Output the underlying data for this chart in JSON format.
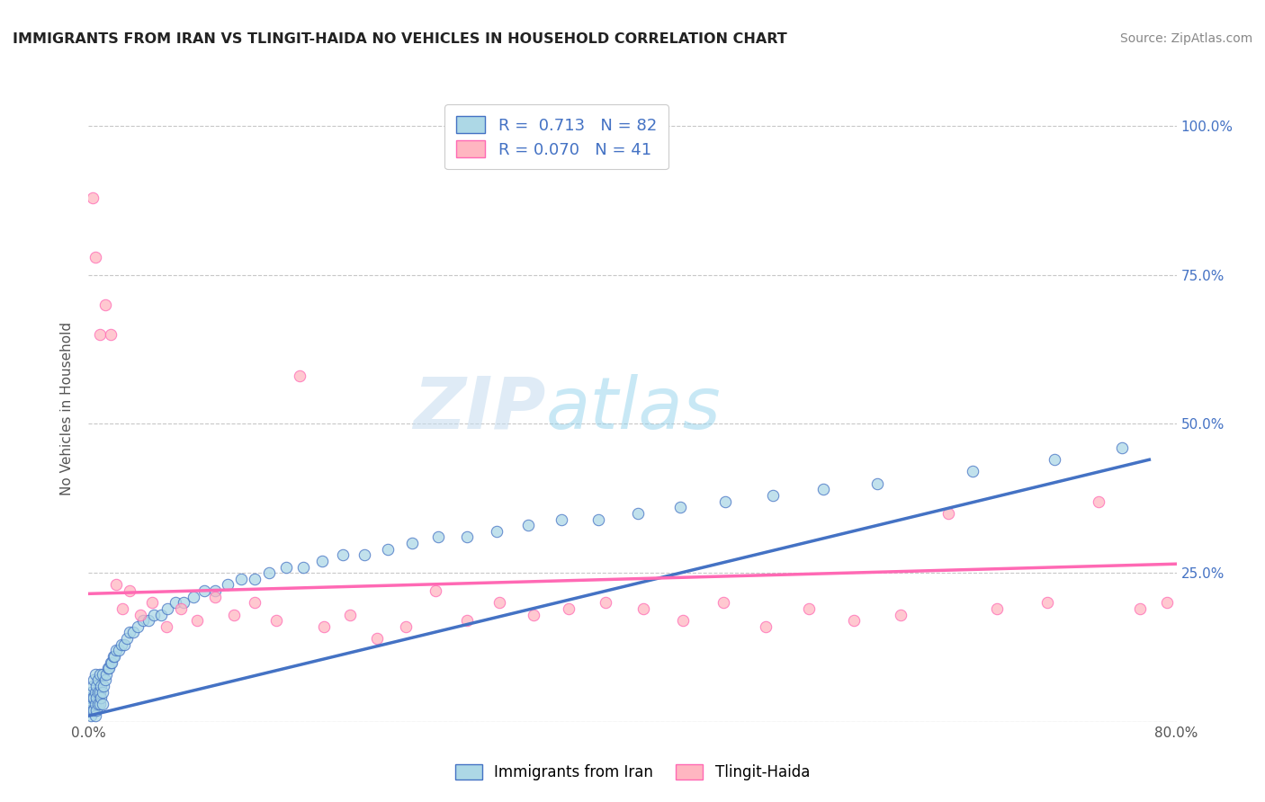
{
  "title": "IMMIGRANTS FROM IRAN VS TLINGIT-HAIDA NO VEHICLES IN HOUSEHOLD CORRELATION CHART",
  "source": "Source: ZipAtlas.com",
  "ylabel": "No Vehicles in Household",
  "x_min": 0.0,
  "x_max": 0.8,
  "y_min": 0.0,
  "y_max": 1.05,
  "x_ticks": [
    0.0,
    0.1,
    0.2,
    0.3,
    0.4,
    0.5,
    0.6,
    0.7,
    0.8
  ],
  "y_ticks": [
    0.0,
    0.25,
    0.5,
    0.75,
    1.0
  ],
  "y_tick_labels_right": [
    "",
    "25.0%",
    "50.0%",
    "75.0%",
    "100.0%"
  ],
  "legend_labels": [
    "Immigrants from Iran",
    "Tlingit-Haida"
  ],
  "scatter_color_iran": "#ADD8E6",
  "scatter_color_tlingit": "#FFB6C1",
  "line_color_iran": "#4472C4",
  "line_color_tlingit": "#FF69B4",
  "watermark_zip": "ZIP",
  "watermark_atlas": "atlas",
  "background_color": "#FFFFFF",
  "grid_color": "#C8C8C8",
  "iran_line_x0": 0.0,
  "iran_line_y0": 0.01,
  "iran_line_x1": 0.78,
  "iran_line_y1": 0.44,
  "tlingit_line_x0": 0.0,
  "tlingit_line_y0": 0.215,
  "tlingit_line_x1": 0.8,
  "tlingit_line_y1": 0.265,
  "iran_scatter_x": [
    0.001,
    0.001,
    0.002,
    0.002,
    0.002,
    0.003,
    0.003,
    0.003,
    0.004,
    0.004,
    0.004,
    0.005,
    0.005,
    0.005,
    0.005,
    0.006,
    0.006,
    0.006,
    0.007,
    0.007,
    0.007,
    0.008,
    0.008,
    0.008,
    0.009,
    0.009,
    0.01,
    0.01,
    0.01,
    0.011,
    0.012,
    0.013,
    0.014,
    0.015,
    0.016,
    0.017,
    0.018,
    0.019,
    0.02,
    0.022,
    0.024,
    0.026,
    0.028,
    0.03,
    0.033,
    0.036,
    0.04,
    0.044,
    0.048,
    0.053,
    0.058,
    0.064,
    0.07,
    0.077,
    0.085,
    0.093,
    0.102,
    0.112,
    0.122,
    0.133,
    0.145,
    0.158,
    0.172,
    0.187,
    0.203,
    0.22,
    0.238,
    0.257,
    0.278,
    0.3,
    0.323,
    0.348,
    0.375,
    0.404,
    0.435,
    0.468,
    0.503,
    0.54,
    0.58,
    0.65,
    0.71,
    0.76
  ],
  "iran_scatter_y": [
    0.02,
    0.04,
    0.01,
    0.03,
    0.05,
    0.02,
    0.04,
    0.06,
    0.02,
    0.04,
    0.07,
    0.01,
    0.03,
    0.05,
    0.08,
    0.02,
    0.04,
    0.06,
    0.03,
    0.05,
    0.07,
    0.03,
    0.05,
    0.08,
    0.04,
    0.06,
    0.03,
    0.05,
    0.08,
    0.06,
    0.07,
    0.08,
    0.09,
    0.09,
    0.1,
    0.1,
    0.11,
    0.11,
    0.12,
    0.12,
    0.13,
    0.13,
    0.14,
    0.15,
    0.15,
    0.16,
    0.17,
    0.17,
    0.18,
    0.18,
    0.19,
    0.2,
    0.2,
    0.21,
    0.22,
    0.22,
    0.23,
    0.24,
    0.24,
    0.25,
    0.26,
    0.26,
    0.27,
    0.28,
    0.28,
    0.29,
    0.3,
    0.31,
    0.31,
    0.32,
    0.33,
    0.34,
    0.34,
    0.35,
    0.36,
    0.37,
    0.38,
    0.39,
    0.4,
    0.42,
    0.44,
    0.46
  ],
  "tlingit_scatter_x": [
    0.003,
    0.005,
    0.008,
    0.012,
    0.016,
    0.02,
    0.025,
    0.03,
    0.038,
    0.047,
    0.057,
    0.068,
    0.08,
    0.093,
    0.107,
    0.122,
    0.138,
    0.155,
    0.173,
    0.192,
    0.212,
    0.233,
    0.255,
    0.278,
    0.302,
    0.327,
    0.353,
    0.38,
    0.408,
    0.437,
    0.467,
    0.498,
    0.53,
    0.563,
    0.597,
    0.632,
    0.668,
    0.705,
    0.743,
    0.773,
    0.793
  ],
  "tlingit_scatter_y": [
    0.88,
    0.78,
    0.65,
    0.7,
    0.65,
    0.23,
    0.19,
    0.22,
    0.18,
    0.2,
    0.16,
    0.19,
    0.17,
    0.21,
    0.18,
    0.2,
    0.17,
    0.58,
    0.16,
    0.18,
    0.14,
    0.16,
    0.22,
    0.17,
    0.2,
    0.18,
    0.19,
    0.2,
    0.19,
    0.17,
    0.2,
    0.16,
    0.19,
    0.17,
    0.18,
    0.35,
    0.19,
    0.2,
    0.37,
    0.19,
    0.2
  ]
}
